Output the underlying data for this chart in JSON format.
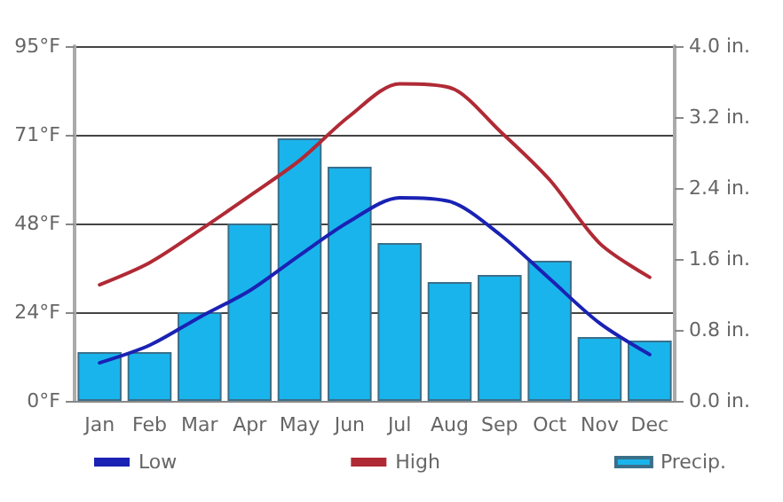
{
  "chart_data": {
    "type": "line",
    "categories": [
      "Jan",
      "Feb",
      "Mar",
      "Apr",
      "May",
      "Jun",
      "Jul",
      "Aug",
      "Sep",
      "Oct",
      "Nov",
      "Dec"
    ],
    "series": [
      {
        "name": "Low",
        "color": "#1a22b4",
        "values": [
          10.2,
          14.9,
          22.4,
          29.5,
          39,
          48.1,
          54.4,
          53.4,
          44.6,
          32.7,
          20.8,
          12.4
        ]
      },
      {
        "name": "High",
        "color": "#b02a35",
        "values": [
          31.1,
          37,
          45.7,
          54.9,
          64.4,
          76.3,
          84.9,
          83.9,
          72.3,
          59.2,
          42.2,
          33.1
        ]
      },
      {
        "name": "Precip.",
        "type": "bar",
        "axis": "y2",
        "color": "#1ab4ec",
        "values": [
          0.55,
          0.55,
          1.0,
          2.0,
          2.96,
          2.64,
          1.78,
          1.34,
          1.42,
          1.58,
          0.72,
          0.68
        ]
      }
    ],
    "ylim": [
      0,
      95
    ],
    "yticks": [
      {
        "value": 0,
        "label": "0°F"
      },
      {
        "value": 23.75,
        "label": "24°F"
      },
      {
        "value": 47.5,
        "label": "48°F"
      },
      {
        "value": 71.25,
        "label": "71°F"
      },
      {
        "value": 95,
        "label": "95°F"
      }
    ],
    "y2lim": [
      0,
      4
    ],
    "y2ticks": [
      {
        "value": 0,
        "label": "0.0 in."
      },
      {
        "value": 0.8,
        "label": "0.8 in."
      },
      {
        "value": 1.6,
        "label": "1.6 in."
      },
      {
        "value": 2.4,
        "label": "2.4 in."
      },
      {
        "value": 3.2,
        "label": "3.2 in."
      },
      {
        "value": 4,
        "label": "4.0 in."
      }
    ],
    "grid": "y",
    "legend": "bottom",
    "marker": "none",
    "line_style": "solid"
  }
}
